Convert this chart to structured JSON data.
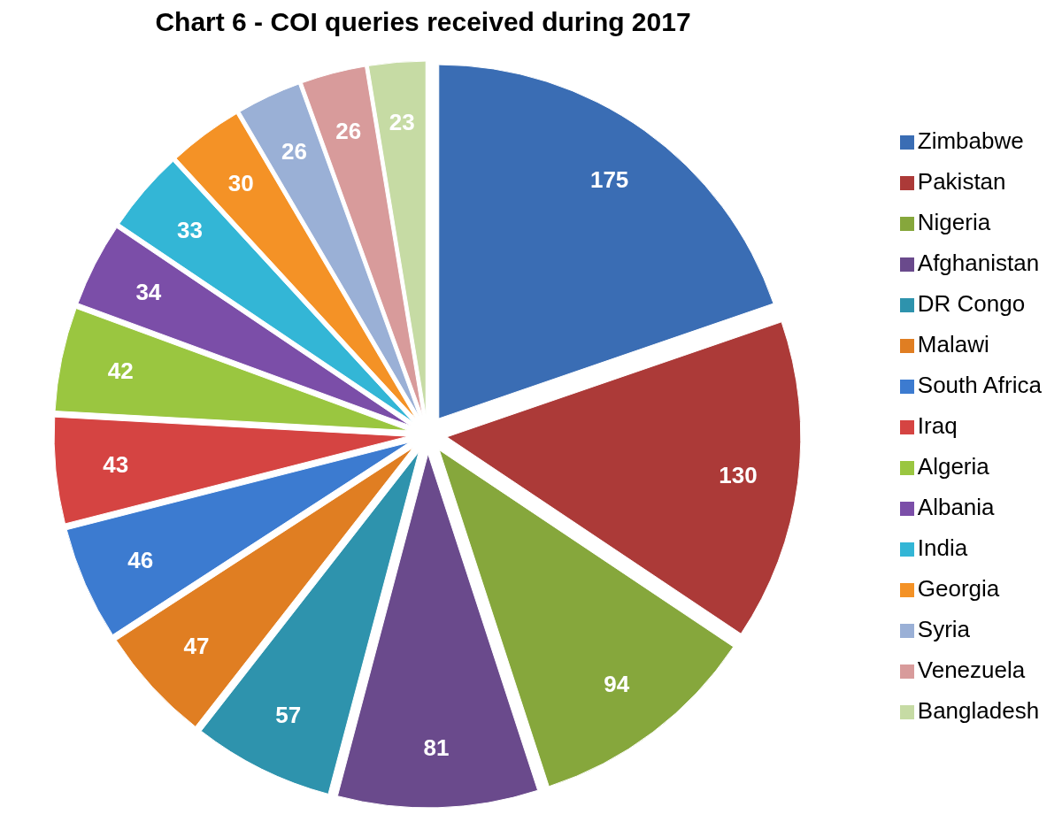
{
  "chart_data": {
    "type": "pie",
    "title": "Chart 6 - COI queries received during 2017",
    "categories": [
      "Zimbabwe",
      "Pakistan",
      "Nigeria",
      "Afghanistan",
      "DR Congo",
      "Malawi",
      "South Africa",
      "Iraq",
      "Algeria",
      "Albania",
      "India",
      "Georgia",
      "Syria",
      "Venezuela",
      "Bangladesh"
    ],
    "values": [
      175,
      130,
      94,
      81,
      57,
      47,
      46,
      43,
      42,
      34,
      33,
      30,
      26,
      26,
      23
    ],
    "colors": [
      "#3a6db4",
      "#ac3a38",
      "#86a73c",
      "#6a4a8c",
      "#2e93ad",
      "#e07e22",
      "#3c7bd0",
      "#d54442",
      "#9ac640",
      "#7b4ea8",
      "#33b6d6",
      "#f49226",
      "#9ab0d6",
      "#d89b9b",
      "#c6dba4"
    ],
    "data_labels": true,
    "legend": "right"
  }
}
